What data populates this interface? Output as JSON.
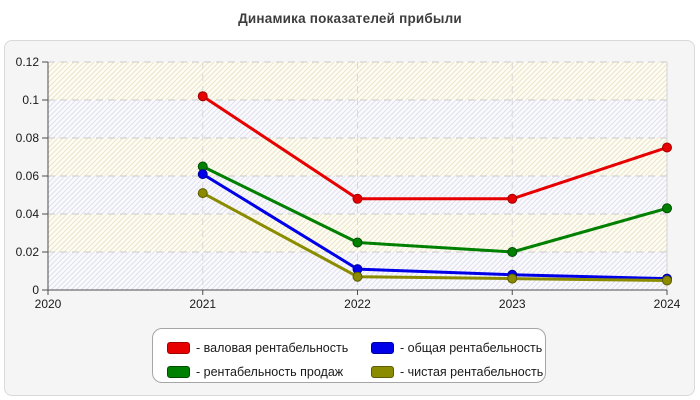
{
  "title": "Динамика показателей прибыли",
  "chart_data": {
    "type": "line",
    "title": "Динамика показателей прибыли",
    "x": [
      2021,
      2022,
      2023,
      2024
    ],
    "xlim": [
      2020,
      2024
    ],
    "ylim": [
      0,
      0.12
    ],
    "xtick_values": [
      2020,
      2021,
      2022,
      2023,
      2024
    ],
    "xtick_labels": [
      "2020",
      "2021",
      "2022",
      "2023",
      "2024"
    ],
    "ytick_values": [
      0,
      0.02,
      0.04,
      0.06,
      0.08,
      0.1,
      0.12
    ],
    "ytick_labels": [
      "0",
      "0.02",
      "0.04",
      "0.06",
      "0.08",
      "0.1",
      "0.12"
    ],
    "grid": true,
    "legend_position": "bottom",
    "series": [
      {
        "key": "valovaya-rentabelnost",
        "name": "валовая рентабельность",
        "color": "#e60000",
        "marker_border": "#a00000",
        "values": [
          0.102,
          0.048,
          0.048,
          0.075
        ]
      },
      {
        "key": "rentabelnost-prodazh",
        "name": "рентабельность продаж",
        "color": "#008000",
        "marker_border": "#004d00",
        "values": [
          0.065,
          0.025,
          0.02,
          0.043
        ]
      },
      {
        "key": "obshchaya-rentabelnost",
        "name": "общая рентабельность",
        "color": "#0000e8",
        "marker_border": "#000099",
        "values": [
          0.061,
          0.011,
          0.008,
          0.006
        ]
      },
      {
        "key": "chistaya-rentabelnost",
        "name": "чистая рентабельность",
        "color": "#8b8b00",
        "marker_border": "#5c5c00",
        "values": [
          0.051,
          0.007,
          0.006,
          0.005
        ]
      }
    ]
  },
  "legend": {
    "prefix": "- ",
    "items": [
      {
        "key": "valovaya-rentabelnost",
        "label": "валовая рентабельность",
        "color": "#e60000",
        "border": "#a00000"
      },
      {
        "key": "obshchaya-rentabelnost",
        "label": "общая рентабельность",
        "color": "#0000e8",
        "border": "#000099"
      },
      {
        "key": "rentabelnost-prodazh",
        "label": "рентабельность продаж",
        "color": "#008000",
        "border": "#004d00"
      },
      {
        "key": "chistaya-rentabelnost",
        "label": "чистая рентабельность",
        "color": "#8b8b00",
        "border": "#5c5c00"
      }
    ]
  }
}
